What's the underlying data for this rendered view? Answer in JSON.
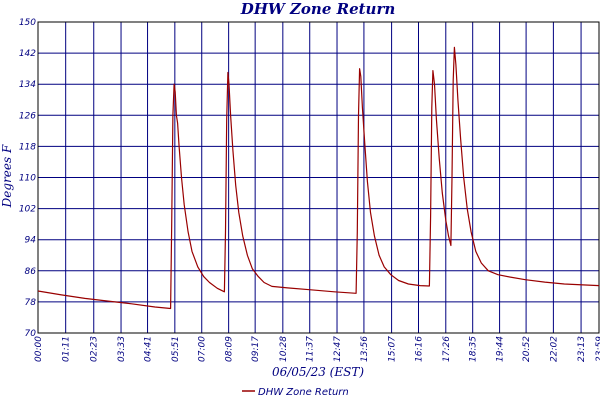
{
  "chart_data": {
    "type": "line",
    "title": "DHW Zone Return",
    "xlabel": "06/05/23 (EST)",
    "ylabel": "Degrees F",
    "ylim": [
      70,
      150
    ],
    "yticks": [
      70,
      78,
      86,
      94,
      102,
      110,
      118,
      126,
      134,
      142,
      150
    ],
    "xlim_minutes": [
      0,
      1439
    ],
    "xtick_labels": [
      "00:00",
      "01:11",
      "02:23",
      "03:33",
      "04:41",
      "05:51",
      "07:00",
      "08:09",
      "09:17",
      "10:28",
      "11:37",
      "12:47",
      "13:56",
      "15:07",
      "16:16",
      "17:26",
      "18:35",
      "19:44",
      "20:52",
      "22:02",
      "23:13",
      "23:59"
    ],
    "xtick_minutes": [
      0,
      71,
      143,
      213,
      281,
      351,
      420,
      489,
      557,
      628,
      697,
      767,
      836,
      907,
      976,
      1046,
      1115,
      1184,
      1252,
      1322,
      1393,
      1439
    ],
    "grid": true,
    "legend_position": "bottom",
    "colors": {
      "series": "#990000",
      "grid": "#000080",
      "text": "#000080",
      "axes": "#000000"
    },
    "series": [
      {
        "name": "DHW Zone Return",
        "points": [
          [
            0,
            80.8
          ],
          [
            60,
            79.8
          ],
          [
            120,
            78.9
          ],
          [
            180,
            78.2
          ],
          [
            240,
            77.5
          ],
          [
            300,
            76.7
          ],
          [
            340,
            76.3
          ],
          [
            343,
            98
          ],
          [
            346,
            126
          ],
          [
            349,
            134
          ],
          [
            352,
            132
          ],
          [
            355,
            126
          ],
          [
            358,
            124
          ],
          [
            362,
            118
          ],
          [
            368,
            110
          ],
          [
            375,
            103
          ],
          [
            385,
            96
          ],
          [
            395,
            91
          ],
          [
            410,
            87
          ],
          [
            425,
            84.5
          ],
          [
            440,
            83
          ],
          [
            460,
            81.5
          ],
          [
            478,
            80.6
          ],
          [
            481,
            96
          ],
          [
            484,
            125
          ],
          [
            487,
            137
          ],
          [
            490,
            134
          ],
          [
            494,
            126
          ],
          [
            500,
            117
          ],
          [
            507,
            108
          ],
          [
            515,
            101
          ],
          [
            525,
            95
          ],
          [
            537,
            90
          ],
          [
            550,
            86.5
          ],
          [
            565,
            84.5
          ],
          [
            580,
            83
          ],
          [
            600,
            82
          ],
          [
            640,
            81.6
          ],
          [
            700,
            81.1
          ],
          [
            760,
            80.6
          ],
          [
            816,
            80.2
          ],
          [
            819,
            96
          ],
          [
            822,
            126
          ],
          [
            825,
            138
          ],
          [
            828,
            136
          ],
          [
            832,
            128
          ],
          [
            838,
            119
          ],
          [
            845,
            109
          ],
          [
            853,
            101
          ],
          [
            863,
            95
          ],
          [
            875,
            90
          ],
          [
            888,
            87
          ],
          [
            905,
            85
          ],
          [
            925,
            83.5
          ],
          [
            950,
            82.6
          ],
          [
            980,
            82.2
          ],
          [
            1004,
            82.1
          ],
          [
            1007,
            100
          ],
          [
            1010,
            128
          ],
          [
            1013,
            137.5
          ],
          [
            1017,
            134
          ],
          [
            1022,
            125
          ],
          [
            1029,
            115
          ],
          [
            1037,
            106
          ],
          [
            1046,
            99
          ],
          [
            1053,
            95
          ],
          [
            1059,
            92.5
          ],
          [
            1062,
            110
          ],
          [
            1065,
            135
          ],
          [
            1068,
            143.5
          ],
          [
            1072,
            139
          ],
          [
            1077,
            130
          ],
          [
            1084,
            120
          ],
          [
            1092,
            110
          ],
          [
            1101,
            102
          ],
          [
            1111,
            96
          ],
          [
            1123,
            91
          ],
          [
            1137,
            88
          ],
          [
            1155,
            86
          ],
          [
            1180,
            85
          ],
          [
            1210,
            84.4
          ],
          [
            1250,
            83.7
          ],
          [
            1300,
            83.1
          ],
          [
            1350,
            82.6
          ],
          [
            1439,
            82.2
          ]
        ]
      }
    ]
  }
}
